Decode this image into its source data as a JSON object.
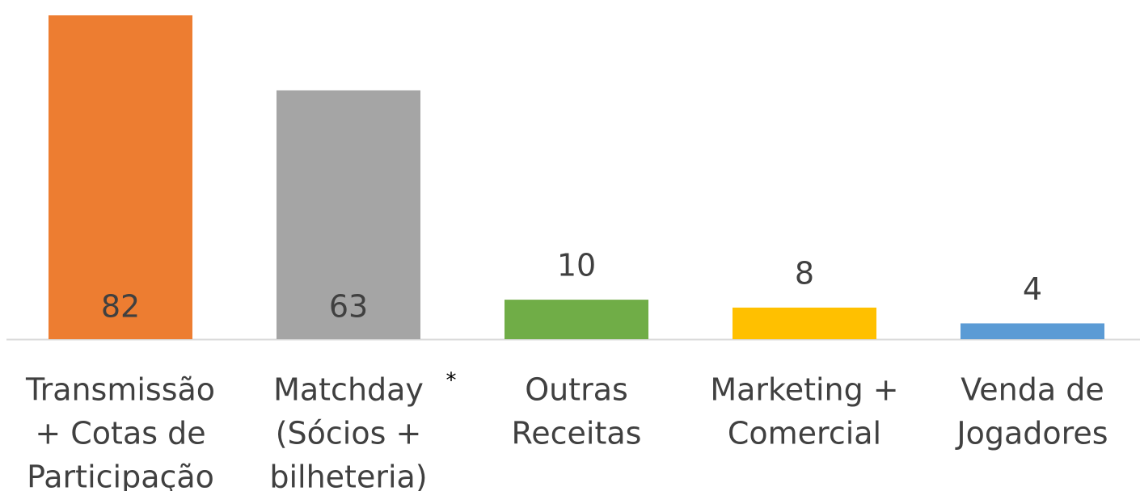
{
  "chart_data": {
    "type": "bar",
    "categories": [
      [
        "Transmissão",
        "+ Cotas de",
        "Participação"
      ],
      [
        "Matchday",
        "(Sócios +",
        "bilheteria)"
      ],
      [
        "Outras",
        "Receitas"
      ],
      [
        "Marketing +",
        "Comercial"
      ],
      [
        "Venda de",
        "Jogadores"
      ]
    ],
    "values": [
      82,
      63,
      10,
      8,
      4
    ],
    "colors": [
      "#ed7d31",
      "#a5a5a5",
      "#70ad47",
      "#ffc000",
      "#5b9bd5"
    ],
    "value_label_positions": [
      "inside_base",
      "inside_base",
      "outside_end",
      "outside_end",
      "outside_end"
    ],
    "footnote_marker": "*",
    "ylim": [
      0,
      82
    ]
  }
}
